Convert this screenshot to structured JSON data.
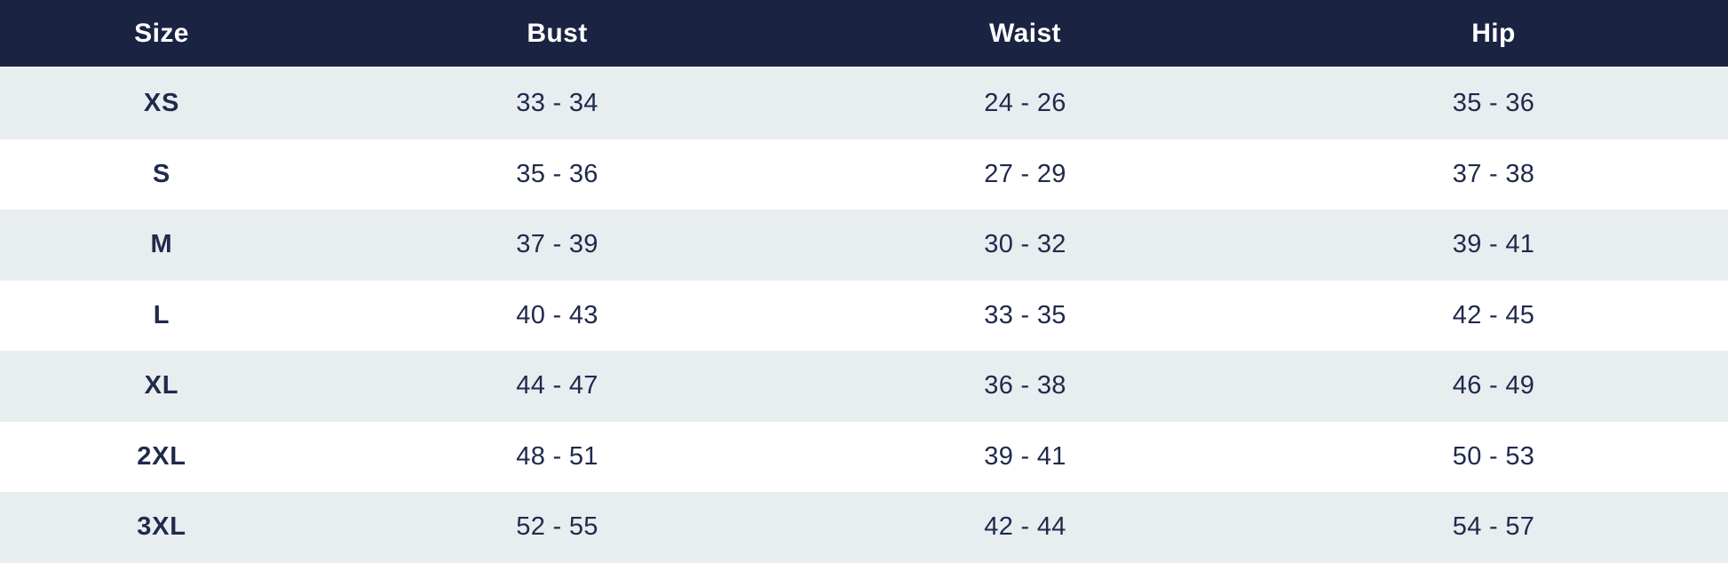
{
  "size_chart": {
    "columns": [
      "Size",
      "Bust",
      "Waist",
      "Hip"
    ],
    "rows": [
      {
        "size": "XS",
        "bust": "33 - 34",
        "waist": "24 - 26",
        "hip": "35 - 36"
      },
      {
        "size": "S",
        "bust": "35 - 36",
        "waist": "27 - 29",
        "hip": "37 - 38"
      },
      {
        "size": "M",
        "bust": "37 - 39",
        "waist": "30 - 32",
        "hip": "39 - 41"
      },
      {
        "size": "L",
        "bust": "40 - 43",
        "waist": "33 - 35",
        "hip": "42 - 45"
      },
      {
        "size": "XL",
        "bust": "44 - 47",
        "waist": "36 - 38",
        "hip": "46 - 49"
      },
      {
        "size": "2XL",
        "bust": "48 - 51",
        "waist": "39 - 41",
        "hip": "50 - 53"
      },
      {
        "size": "3XL",
        "bust": "52 - 55",
        "waist": "42 - 44",
        "hip": "54 - 57"
      }
    ],
    "colors": {
      "header_bg": "#1a2342",
      "header_text": "#ffffff",
      "row_alt_bg": "#e8edf0",
      "row_bg": "#ffffff",
      "cell_text": "#1f2a4c"
    }
  }
}
